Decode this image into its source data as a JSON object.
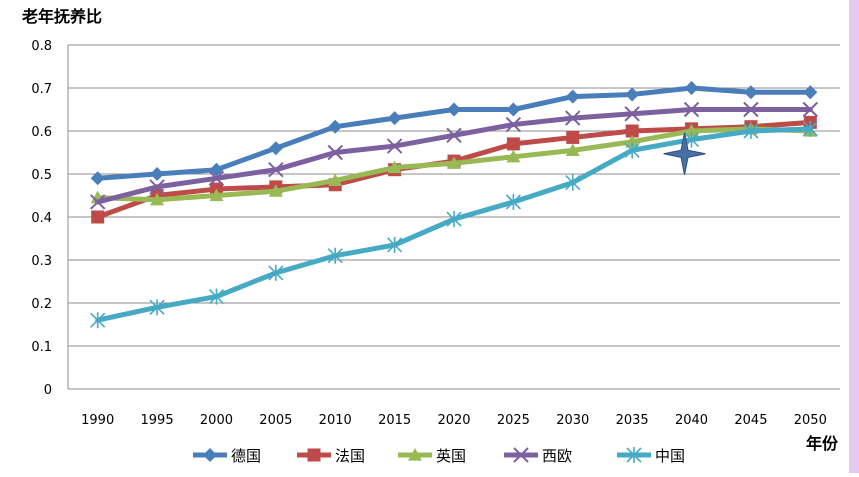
{
  "chart_data": {
    "type": "line",
    "title": "",
    "ylabel": "老年抚养比",
    "xlabel": "年份",
    "ylim": [
      0,
      0.8
    ],
    "yticks": [
      "0",
      "0.1",
      "0.2",
      "0.3",
      "0.4",
      "0.5",
      "0.6",
      "0.7",
      "0.8"
    ],
    "categories": [
      "1990",
      "1995",
      "2000",
      "2005",
      "2010",
      "2015",
      "2020",
      "2025",
      "2030",
      "2035",
      "2040",
      "2045",
      "2050"
    ],
    "grid": true,
    "legend_position": "bottom",
    "series": [
      {
        "name": "德国",
        "color": "#4a7ebb",
        "marker": "diamond",
        "values": [
          0.49,
          0.5,
          0.51,
          0.56,
          0.61,
          0.63,
          0.65,
          0.65,
          0.68,
          0.685,
          0.7,
          0.69,
          0.69
        ]
      },
      {
        "name": "法国",
        "color": "#be4b48",
        "marker": "square",
        "values": [
          0.4,
          0.45,
          0.465,
          0.47,
          0.475,
          0.51,
          0.53,
          0.57,
          0.585,
          0.6,
          0.605,
          0.61,
          0.62
        ]
      },
      {
        "name": "英国",
        "color": "#98b954",
        "marker": "triangle",
        "values": [
          0.445,
          0.44,
          0.45,
          0.46,
          0.485,
          0.515,
          0.525,
          0.54,
          0.555,
          0.575,
          0.6,
          0.605,
          0.6
        ]
      },
      {
        "name": "西欧",
        "color": "#7d60a0",
        "marker": "x",
        "values": [
          0.435,
          0.47,
          0.49,
          0.51,
          0.55,
          0.565,
          0.59,
          0.615,
          0.63,
          0.64,
          0.65,
          0.65,
          0.65
        ]
      },
      {
        "name": "中国",
        "color": "#46aac5",
        "marker": "asterisk",
        "values": [
          0.16,
          0.19,
          0.215,
          0.27,
          0.31,
          0.335,
          0.395,
          0.435,
          0.48,
          0.555,
          0.58,
          0.6,
          0.605
        ]
      }
    ],
    "annotation": {
      "shape": "four-point-star",
      "x": "2040",
      "y": 0.547,
      "color": "#4a6fa8"
    }
  },
  "frame": {
    "right_bar_color": "#e6c8f0"
  }
}
